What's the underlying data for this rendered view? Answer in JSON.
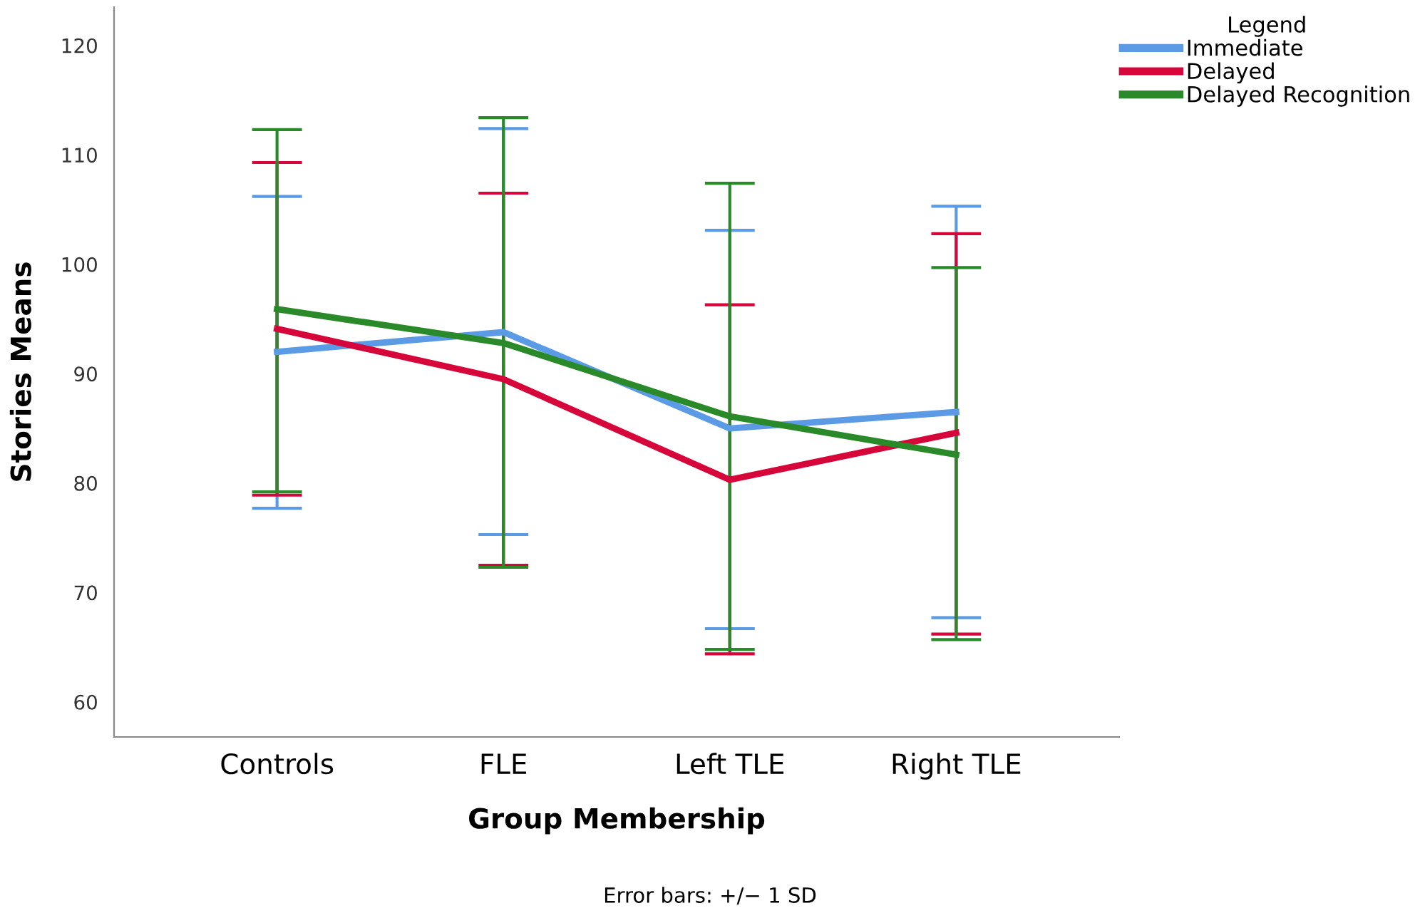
{
  "chart_data": {
    "type": "line",
    "xlabel": "Group Membership",
    "ylabel": "Stories Means",
    "legend_title": "Legend",
    "categories": [
      "Controls",
      "FLE",
      "Left TLE",
      "Right TLE"
    ],
    "series": [
      {
        "name": "Immediate",
        "color": "#5b9be6",
        "values": [
          92.0,
          93.8,
          85.0,
          86.5
        ],
        "errors": [
          [
            77.7,
            106.2
          ],
          [
            75.3,
            112.4
          ],
          [
            66.7,
            103.1
          ],
          [
            67.7,
            105.3
          ]
        ]
      },
      {
        "name": "Delayed",
        "color": "#d6053a",
        "values": [
          94.1,
          89.5,
          80.3,
          84.6
        ],
        "errors": [
          [
            78.9,
            109.3
          ],
          [
            72.5,
            106.5
          ],
          [
            64.4,
            96.3
          ],
          [
            66.2,
            102.8
          ]
        ]
      },
      {
        "name": "Delayed Recognition",
        "color": "#2a8a2a",
        "values": [
          95.9,
          92.8,
          86.1,
          82.6
        ],
        "errors": [
          [
            79.2,
            112.3
          ],
          [
            72.3,
            113.4
          ],
          [
            64.8,
            107.4
          ],
          [
            65.7,
            99.7
          ]
        ]
      }
    ],
    "ylim": [
      56.8,
      123.5
    ],
    "yticks": [
      60,
      70,
      80,
      90,
      100,
      110,
      120
    ],
    "grid": false,
    "legend": "top right",
    "marker": "none",
    "line_style": "solid",
    "annotations": [
      "Error bars: +/− 1 SD"
    ]
  }
}
